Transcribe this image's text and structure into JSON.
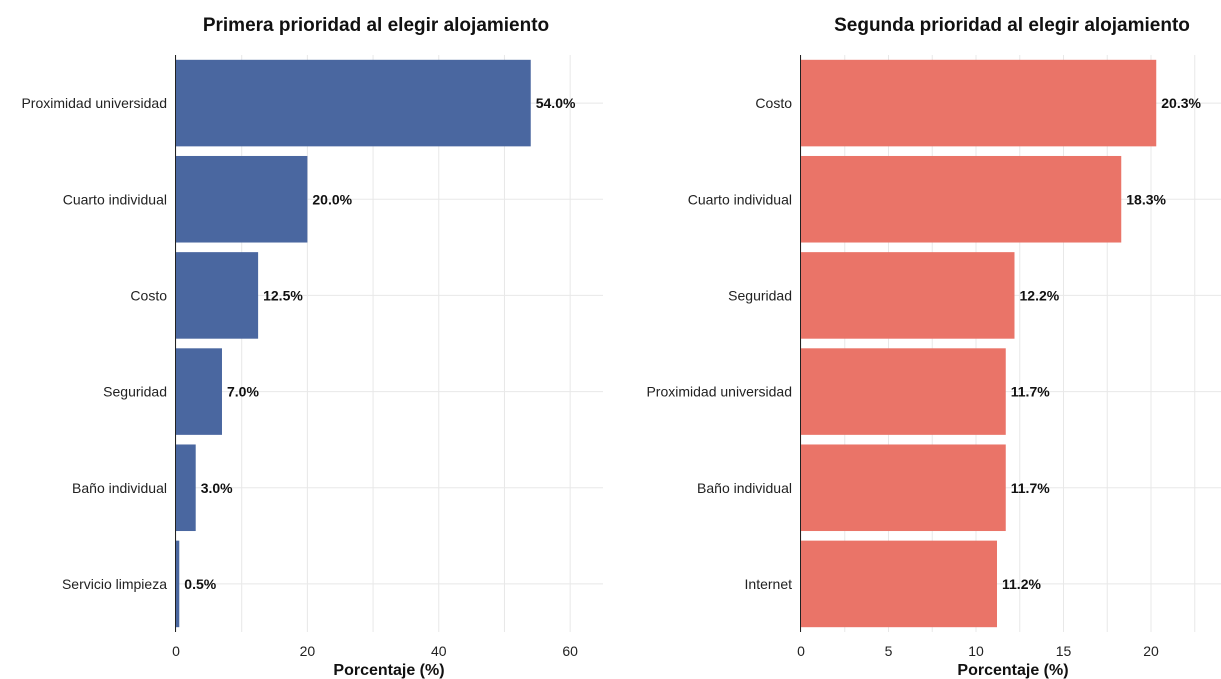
{
  "chart_data": [
    {
      "type": "bar",
      "orientation": "horizontal",
      "title": "Primera prioridad al elegir alojamiento",
      "xlabel": "Porcentaje (%)",
      "ylabel": "",
      "categories": [
        "Proximidad universidad",
        "Cuarto individual",
        "Costo",
        "Seguridad",
        "Baño individual",
        "Servicio limpieza"
      ],
      "values": [
        54.0,
        20.0,
        12.5,
        7.0,
        3.0,
        0.5
      ],
      "data_labels": [
        "54.0%",
        "20.0%",
        "12.5%",
        "7.0%",
        "3.0%",
        "0.5%"
      ],
      "xlim": [
        0,
        65
      ],
      "xticks": [
        0,
        20,
        40,
        60
      ],
      "xtick_labels": [
        "0",
        "20",
        "40",
        "60"
      ],
      "color": "#4a67a0",
      "grid": true
    },
    {
      "type": "bar",
      "orientation": "horizontal",
      "title": "Segunda prioridad al elegir alojamiento",
      "xlabel": "Porcentaje (%)",
      "ylabel": "",
      "categories": [
        "Costo",
        "Cuarto individual",
        "Seguridad",
        "Proximidad universidad",
        "Baño individual",
        "Internet"
      ],
      "values": [
        20.3,
        18.3,
        12.2,
        11.7,
        11.7,
        11.2
      ],
      "data_labels": [
        "20.3%",
        "18.3%",
        "12.2%",
        "11.7%",
        "11.7%",
        "11.2%"
      ],
      "xlim": [
        0,
        24
      ],
      "xticks": [
        0,
        5,
        10,
        15,
        20
      ],
      "xtick_labels": [
        "0",
        "5",
        "10",
        "15",
        "20"
      ],
      "color": "#ea7468",
      "grid": true
    }
  ]
}
